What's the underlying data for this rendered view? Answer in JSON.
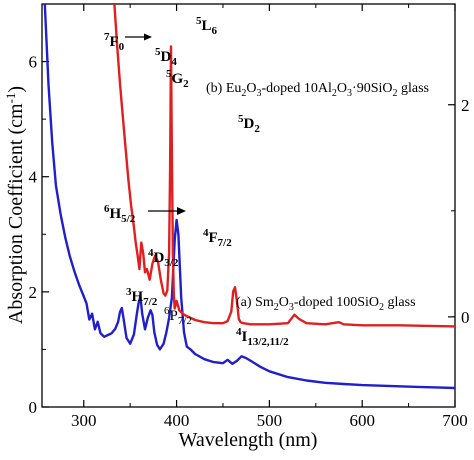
{
  "chart_data": {
    "type": "line",
    "xlabel": "Wavelength (nm)",
    "ylabel": "Absorption Coefficient (cm",
    "ylabel_sup": "-1",
    "ylabel_close": ")",
    "xlim": [
      255,
      700
    ],
    "ylim_left": [
      0,
      7
    ],
    "ylim_right": [
      -0.85,
      2.95
    ],
    "x_ticks": [
      300,
      400,
      500,
      600,
      700
    ],
    "y_ticks_left": [
      0,
      2,
      4,
      6
    ],
    "y_ticks_right": [
      0,
      2
    ],
    "grid": false,
    "series": [
      {
        "name": "(a) Sm2O3-doped 100SiO2 glass",
        "color": "#1f1fcc",
        "axis": "left",
        "x": [
          258,
          262,
          266,
          270,
          275,
          280,
          285,
          290,
          295,
          300,
          303,
          306,
          309,
          312,
          315,
          318,
          322,
          326,
          330,
          334,
          337,
          339,
          341,
          343,
          346,
          350,
          354,
          357,
          359,
          361,
          363,
          366,
          369,
          372,
          374,
          376,
          379,
          382,
          384,
          386,
          389,
          392,
          395,
          398,
          400,
          402,
          405,
          408,
          411,
          415,
          420,
          430,
          440,
          450,
          455,
          460,
          465,
          470,
          475,
          480,
          490,
          500,
          520,
          540,
          560,
          580,
          600,
          620,
          640,
          660,
          680,
          700
        ],
        "y": [
          7.0,
          5.6,
          4.6,
          3.85,
          3.35,
          2.95,
          2.62,
          2.35,
          2.12,
          1.92,
          1.8,
          1.52,
          1.62,
          1.35,
          1.48,
          1.28,
          1.22,
          1.25,
          1.28,
          1.36,
          1.48,
          1.65,
          1.72,
          1.52,
          1.2,
          1.1,
          1.26,
          1.6,
          1.8,
          1.92,
          1.62,
          1.35,
          1.55,
          1.68,
          1.6,
          1.3,
          1.08,
          1.0,
          1.05,
          1.1,
          1.3,
          1.55,
          1.9,
          2.9,
          3.25,
          3.0,
          1.9,
          1.3,
          1.05,
          1.0,
          0.92,
          0.83,
          0.78,
          0.76,
          0.82,
          0.75,
          0.8,
          0.88,
          0.85,
          0.8,
          0.7,
          0.62,
          0.52,
          0.46,
          0.42,
          0.4,
          0.38,
          0.37,
          0.36,
          0.35,
          0.34,
          0.33
        ]
      },
      {
        "name": "(b) Eu2O3-doped 10Al2O3·90SiO2 glass",
        "color": "#e02020",
        "axis": "right",
        "x": [
          333,
          336,
          339,
          342,
          345,
          348,
          351,
          354,
          356,
          358,
          360,
          362,
          364,
          366,
          368,
          371,
          374,
          377,
          380,
          383,
          386,
          388,
          390,
          392,
          393,
          394,
          395,
          396,
          397,
          398,
          400,
          403,
          408,
          413,
          420,
          430,
          440,
          450,
          455,
          459,
          461,
          463,
          465,
          467,
          469,
          472,
          480,
          500,
          520,
          527,
          532,
          540,
          560,
          575,
          580,
          600,
          640,
          700
        ],
        "y": [
          2.95,
          2.55,
          2.2,
          1.9,
          1.6,
          1.3,
          1.05,
          0.85,
          0.7,
          0.58,
          0.45,
          0.7,
          0.6,
          0.42,
          0.45,
          0.35,
          0.5,
          0.58,
          0.52,
          0.35,
          0.22,
          0.2,
          0.25,
          0.6,
          1.4,
          2.55,
          1.5,
          0.6,
          0.22,
          0.08,
          0.15,
          0.06,
          0.02,
          0.0,
          -0.03,
          -0.05,
          -0.06,
          -0.06,
          -0.04,
          0.05,
          0.24,
          0.28,
          0.15,
          -0.02,
          -0.05,
          -0.06,
          -0.07,
          -0.07,
          -0.06,
          0.02,
          -0.02,
          -0.06,
          -0.07,
          -0.05,
          -0.07,
          -0.08,
          -0.08,
          -0.09
        ]
      }
    ],
    "annotations": {
      "eu": {
        "f0": {
          "sup": "7",
          "main": "F",
          "sub": "0"
        },
        "d4": {
          "sup": "5",
          "main": "D",
          "sub": "4"
        },
        "g2": {
          "sup": "5",
          "main": "G",
          "sub": "2"
        },
        "l6": {
          "sup": "5",
          "main": "L",
          "sub": "6"
        },
        "d2": {
          "sup": "5",
          "main": "D",
          "sub": "2"
        },
        "label_a": "(b) Eu",
        "label_b": "2",
        "label_c": "O",
        "label_d": "3",
        "label_e": "-doped 10Al",
        "label_f": "2",
        "label_g": "O",
        "label_h": "3",
        "label_i": "·90SiO",
        "label_j": "2",
        "label_k": " glass"
      },
      "sm": {
        "h52": {
          "sup": "6",
          "main": "H",
          "sub": "5/2"
        },
        "d32": {
          "sup": "4",
          "main": "D",
          "sub": "3/2"
        },
        "h72": {
          "sup": "3",
          "main": "H",
          "sub": "7/2"
        },
        "p72": {
          "sup": "6",
          "main": "P",
          "sub": "7/2"
        },
        "f72": {
          "sup": "4",
          "main": "F",
          "sub": "7/2"
        },
        "i132": {
          "sup": "4",
          "main": "I",
          "sub": "13/2,11/2"
        },
        "label_a": "(a) Sm",
        "label_b": "2",
        "label_c": "O",
        "label_d": "3",
        "label_e": "-doped 100SiO",
        "label_f": "2",
        "label_g": " glass"
      }
    }
  }
}
